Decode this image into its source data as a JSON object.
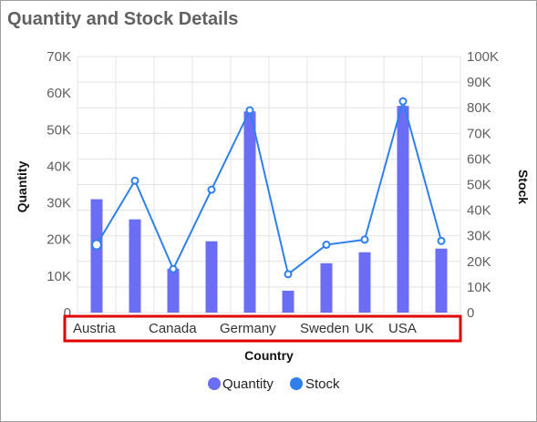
{
  "header": {
    "title": "Quantity and Stock Details"
  },
  "colors": {
    "bar": "#6b6ef5",
    "line": "#2f80ed",
    "grid": "#e3e3e3",
    "highlight": "#e00000"
  },
  "chart_data": {
    "type": "bar",
    "title": "Quantity and Stock Details",
    "xlabel": "Country",
    "ylabel": "Quantity",
    "y2label": "Stock",
    "categories": [
      "Austria",
      "",
      "Canada",
      "",
      "Germany",
      "",
      "Sweden",
      "UK",
      "",
      "USA"
    ],
    "ylim": [
      0,
      70000
    ],
    "y2lim": [
      0,
      100000
    ],
    "yticks": [
      "0",
      "10K",
      "20K",
      "30K",
      "40K",
      "50K",
      "60K",
      "70K"
    ],
    "y2ticks": [
      "0",
      "10K",
      "20K",
      "30K",
      "40K",
      "50K",
      "60K",
      "70K",
      "80K",
      "90K",
      "100K"
    ],
    "grid": true,
    "legend": {
      "placement": "bottom",
      "items": [
        "Quantity",
        "Stock"
      ]
    },
    "series": [
      {
        "name": "Quantity",
        "type": "bar",
        "axis": "left",
        "values": [
          31000,
          25500,
          12000,
          19500,
          55000,
          6000,
          13500,
          16500,
          56500,
          17500
        ]
      },
      {
        "name": "Stock",
        "type": "line",
        "axis": "right",
        "values": [
          26500,
          51500,
          17000,
          48000,
          79000,
          15000,
          26500,
          28500,
          82500,
          28000
        ]
      }
    ]
  }
}
